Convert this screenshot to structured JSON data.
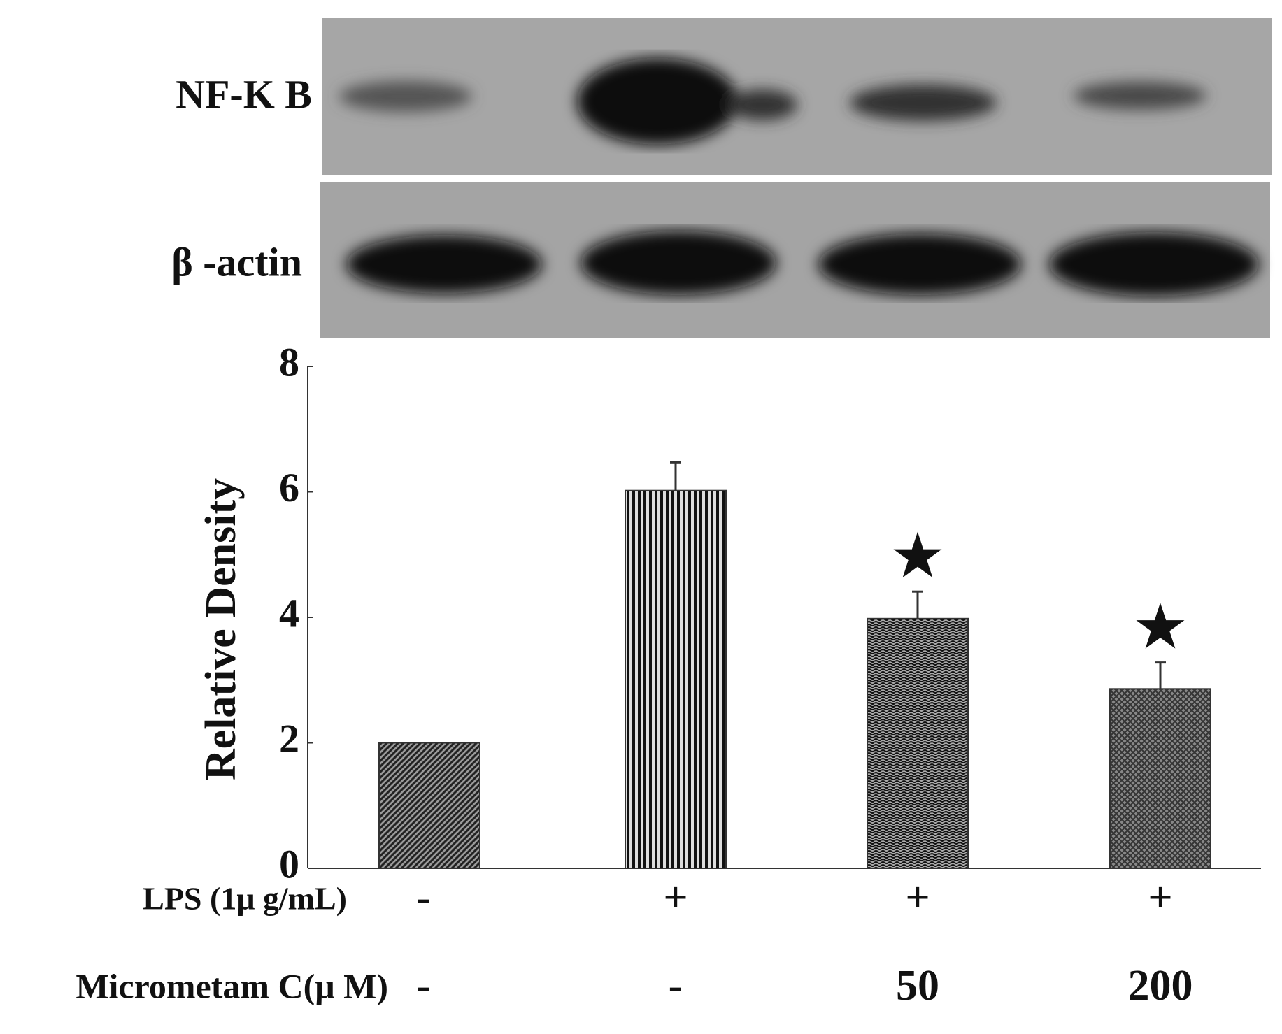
{
  "chart_data": {
    "type": "bar",
    "blot_labels": [
      "NF-K B",
      "β -actin"
    ],
    "y_label": "Relative Density",
    "categories": [
      null,
      null,
      null,
      null
    ],
    "values": [
      2.0,
      6.02,
      3.98,
      2.86
    ],
    "errors": [
      null,
      0.45,
      0.43,
      0.42
    ],
    "significance": [
      null,
      null,
      "★",
      "★"
    ],
    "conditions": [
      {
        "label": "LPS (1μ g/mL)",
        "values": [
          "-",
          "+",
          "+",
          "+"
        ]
      },
      {
        "label": "Micrometam C(μ M)",
        "values": [
          "-",
          "-",
          "50",
          "200"
        ]
      }
    ],
    "color": "#333333",
    "ylim": [
      0,
      8
    ],
    "yticks": [
      0,
      2,
      4,
      6,
      8
    ]
  }
}
